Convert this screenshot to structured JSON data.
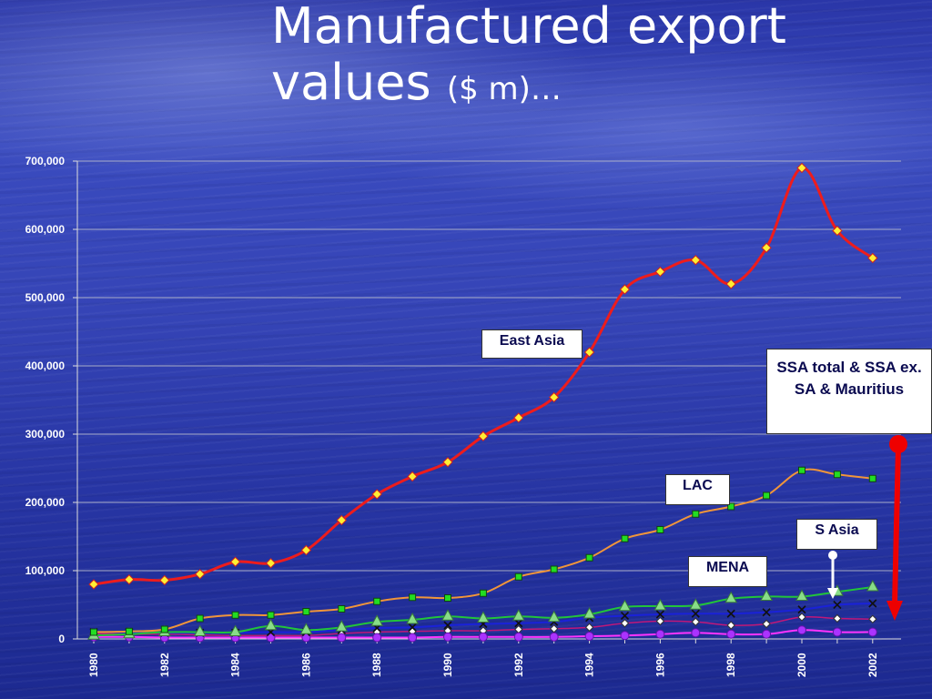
{
  "title": {
    "main": "Manufactured export values",
    "unit": "($ m)…"
  },
  "callouts": {
    "east_asia": "East Asia",
    "lac": "LAC",
    "mena": "MENA",
    "s_asia": "S Asia",
    "ssa": "SSA total & SSA ex. SA & Mauritius"
  },
  "colors": {
    "east_asia": "#ee1c1c",
    "lac": "#f0953a",
    "mena_green": "#22c43a",
    "s_asia": "#1a22d8",
    "ssa_total": "#c01878",
    "ssa_ex": "#ff33ff",
    "arrow": "#ee0000"
  },
  "chart_data": {
    "type": "line",
    "title": "Manufactured export values ($ m)…",
    "xlabel": "",
    "ylabel": "",
    "ylim": [
      0,
      700000
    ],
    "yticks": [
      0,
      100000,
      200000,
      300000,
      400000,
      500000,
      600000,
      700000
    ],
    "ytick_labels": [
      "0",
      "100,000",
      "200,000",
      "300,000",
      "400,000",
      "500,000",
      "600,000",
      "700,000"
    ],
    "x": [
      1980,
      1981,
      1982,
      1983,
      1984,
      1985,
      1986,
      1987,
      1988,
      1989,
      1990,
      1991,
      1992,
      1993,
      1994,
      1995,
      1996,
      1997,
      1998,
      1999,
      2000,
      2001,
      2002
    ],
    "xtick_labels": [
      "1980",
      "1982",
      "1984",
      "1986",
      "1988",
      "1990",
      "1992",
      "1994",
      "1996",
      "1998",
      "2000",
      "2002"
    ],
    "grid": true,
    "series": [
      {
        "name": "East Asia",
        "color": "#ee1c1c",
        "marker": "diamond-yellow",
        "values": [
          80000,
          87000,
          86000,
          95000,
          113000,
          111000,
          130000,
          174000,
          212000,
          238000,
          259000,
          297000,
          324000,
          354000,
          420000,
          512000,
          538000,
          555000,
          520000,
          573000,
          690000,
          598000,
          558000
        ]
      },
      {
        "name": "LAC",
        "color": "#f0953a",
        "marker": "square-green",
        "values": [
          10000,
          11000,
          14000,
          30000,
          35000,
          35000,
          40000,
          44000,
          55000,
          61000,
          60000,
          67000,
          91000,
          102000,
          119000,
          147000,
          160000,
          183000,
          194000,
          210000,
          247000,
          241000,
          235000
        ]
      },
      {
        "name": "MENA",
        "color": "#22c43a",
        "marker": "triangle-green",
        "values": null
      },
      {
        "name": "",
        "color": "#22c43a",
        "marker": "triangle-green",
        "values": [
          5000,
          7000,
          10000,
          10000,
          10000,
          19000,
          13000,
          17000,
          25000,
          28000,
          33000,
          30000,
          33000,
          31000,
          36000,
          47000,
          48000,
          49000,
          59000,
          62000,
          62000,
          69000,
          76000
        ]
      },
      {
        "name": "S Asia",
        "color": "#1a22d8",
        "marker": "x-black",
        "values": [
          10000,
          10000,
          9000,
          9000,
          9000,
          10000,
          10000,
          13000,
          16000,
          17000,
          20000,
          22000,
          23000,
          25000,
          31000,
          34000,
          36000,
          37000,
          37000,
          39000,
          43000,
          50000,
          52000
        ]
      },
      {
        "name": "",
        "color": "#c01878",
        "marker": "diamond-white",
        "values": [
          8000,
          7000,
          7000,
          6000,
          5000,
          5000,
          5000,
          8000,
          10000,
          11000,
          12000,
          12000,
          14000,
          15000,
          17000,
          23000,
          26000,
          25000,
          20000,
          22000,
          32000,
          30000,
          29000
        ]
      },
      {
        "name": "",
        "color": "#ff33ff",
        "marker": "circle-purple",
        "values": [
          3000,
          3000,
          2000,
          2000,
          2000,
          2000,
          2000,
          2000,
          2000,
          2000,
          3000,
          3000,
          3000,
          3000,
          4000,
          5000,
          7000,
          9000,
          7000,
          7000,
          13000,
          10000,
          10000
        ]
      }
    ]
  }
}
